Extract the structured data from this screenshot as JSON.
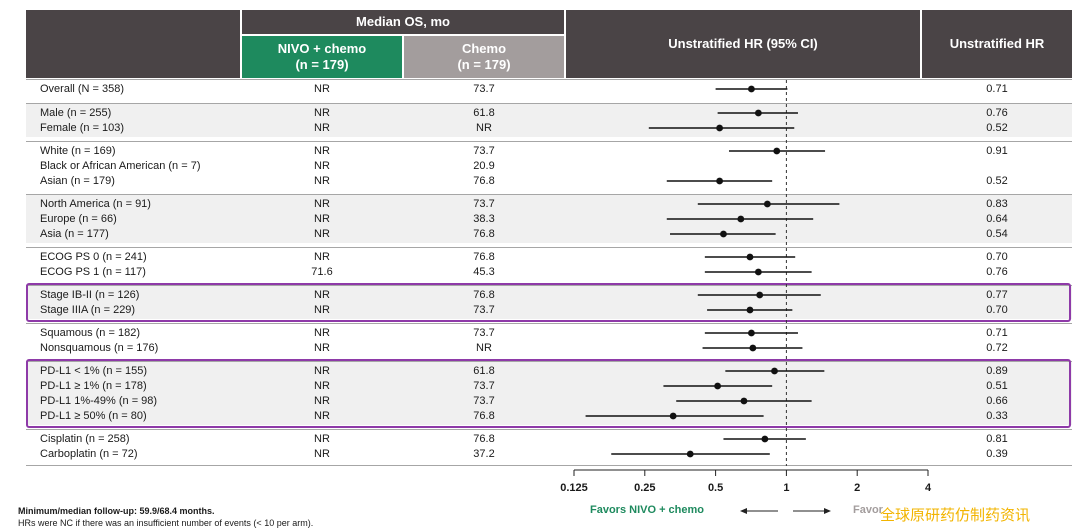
{
  "header": {
    "median_os": "Median OS, mo",
    "nivo": "NIVO + chemo",
    "nivo_n": "(n = 179)",
    "chemo": "Chemo",
    "chemo_n": "(n = 179)",
    "hr_ci": "Unstratified HR (95% CI)",
    "hr": "Unstratified HR"
  },
  "colors": {
    "header_dark": "#4a4446",
    "nivo": "#1e8a5e",
    "chemo": "#a39d9d",
    "highlight": "#8e3aa8",
    "watermark": "#f2b400"
  },
  "rows": [
    {
      "label": "Overall (N = 358)",
      "nivo": "NR",
      "chemo": "73.7",
      "hr_text": "0.71",
      "hr": 0.71,
      "lo": 0.5,
      "hi": 1.01
    },
    {
      "label": "Male (n = 255)",
      "nivo": "NR",
      "chemo": "61.8",
      "hr_text": "0.76",
      "hr": 0.76,
      "lo": 0.51,
      "hi": 1.12
    },
    {
      "label": "Female (n = 103)",
      "nivo": "NR",
      "chemo": "NR",
      "hr_text": "0.52",
      "hr": 0.52,
      "lo": 0.26,
      "hi": 1.08
    },
    {
      "label": "White (n = 169)",
      "nivo": "NR",
      "chemo": "73.7",
      "hr_text": "0.91",
      "hr": 0.91,
      "lo": 0.57,
      "hi": 1.46
    },
    {
      "label": "Black or African American (n = 7)",
      "nivo": "NR",
      "chemo": "20.9",
      "hr_text": "",
      "hr": null,
      "lo": null,
      "hi": null
    },
    {
      "label": "Asian (n = 179)",
      "nivo": "NR",
      "chemo": "76.8",
      "hr_text": "0.52",
      "hr": 0.52,
      "lo": 0.31,
      "hi": 0.87
    },
    {
      "label": "North America (n = 91)",
      "nivo": "NR",
      "chemo": "73.7",
      "hr_text": "0.83",
      "hr": 0.83,
      "lo": 0.42,
      "hi": 1.68
    },
    {
      "label": "Europe (n = 66)",
      "nivo": "NR",
      "chemo": "38.3",
      "hr_text": "0.64",
      "hr": 0.64,
      "lo": 0.31,
      "hi": 1.3
    },
    {
      "label": "Asia (n = 177)",
      "nivo": "NR",
      "chemo": "76.8",
      "hr_text": "0.54",
      "hr": 0.54,
      "lo": 0.32,
      "hi": 0.9
    },
    {
      "label": "ECOG PS 0 (n = 241)",
      "nivo": "NR",
      "chemo": "76.8",
      "hr_text": "0.70",
      "hr": 0.7,
      "lo": 0.45,
      "hi": 1.09
    },
    {
      "label": "ECOG PS 1 (n = 117)",
      "nivo": "71.6",
      "chemo": "45.3",
      "hr_text": "0.76",
      "hr": 0.76,
      "lo": 0.45,
      "hi": 1.28
    },
    {
      "label": "Stage IB-II (n = 126)",
      "nivo": "NR",
      "chemo": "76.8",
      "hr_text": "0.77",
      "hr": 0.77,
      "lo": 0.42,
      "hi": 1.4
    },
    {
      "label": "Stage IIIA (n = 229)",
      "nivo": "NR",
      "chemo": "73.7",
      "hr_text": "0.70",
      "hr": 0.7,
      "lo": 0.46,
      "hi": 1.06
    },
    {
      "label": "Squamous (n = 182)",
      "nivo": "NR",
      "chemo": "73.7",
      "hr_text": "0.71",
      "hr": 0.71,
      "lo": 0.45,
      "hi": 1.12
    },
    {
      "label": "Nonsquamous (n = 176)",
      "nivo": "NR",
      "chemo": "NR",
      "hr_text": "0.72",
      "hr": 0.72,
      "lo": 0.44,
      "hi": 1.17
    },
    {
      "label": "PD-L1 < 1% (n = 155)",
      "nivo": "NR",
      "chemo": "61.8",
      "hr_text": "0.89",
      "hr": 0.89,
      "lo": 0.55,
      "hi": 1.45
    },
    {
      "label": "PD-L1 ≥ 1% (n = 178)",
      "nivo": "NR",
      "chemo": "73.7",
      "hr_text": "0.51",
      "hr": 0.51,
      "lo": 0.3,
      "hi": 0.87
    },
    {
      "label": "PD-L1 1%-49% (n = 98)",
      "nivo": "NR",
      "chemo": "73.7",
      "hr_text": "0.66",
      "hr": 0.66,
      "lo": 0.34,
      "hi": 1.28
    },
    {
      "label": "PD-L1 ≥ 50% (n = 80)",
      "nivo": "NR",
      "chemo": "76.8",
      "hr_text": "0.33",
      "hr": 0.33,
      "lo": 0.14,
      "hi": 0.8
    },
    {
      "label": "Cisplatin (n = 258)",
      "nivo": "NR",
      "chemo": "76.8",
      "hr_text": "0.81",
      "hr": 0.81,
      "lo": 0.54,
      "hi": 1.21
    },
    {
      "label": "Carboplatin (n = 72)",
      "nivo": "NR",
      "chemo": "37.2",
      "hr_text": "0.39",
      "hr": 0.39,
      "lo": 0.18,
      "hi": 0.85
    }
  ],
  "chart_data": {
    "type": "scatter",
    "title": "Unstratified HR (95% CI)",
    "x_scale": "log2",
    "xlim": [
      0.125,
      4
    ],
    "x_ticks": [
      "0.125",
      "0.25",
      "0.5",
      "1",
      "2",
      "4"
    ],
    "reference_line": 1,
    "favors_left": "Favors NIVO + chemo",
    "favors_right": "Favor",
    "categories": [
      "Overall (N = 358)",
      "Male (n = 255)",
      "Female (n = 103)",
      "White (n = 169)",
      "Black or African American (n = 7)",
      "Asian (n = 179)",
      "North America (n = 91)",
      "Europe (n = 66)",
      "Asia (n = 177)",
      "ECOG PS 0 (n = 241)",
      "ECOG PS 1 (n = 117)",
      "Stage IB-II (n = 126)",
      "Stage IIIA (n = 229)",
      "Squamous (n = 182)",
      "Nonsquamous (n = 176)",
      "PD-L1 < 1% (n = 155)",
      "PD-L1 ≥ 1% (n = 178)",
      "PD-L1 1%-49% (n = 98)",
      "PD-L1 ≥ 50% (n = 80)",
      "Cisplatin (n = 258)",
      "Carboplatin (n = 72)"
    ],
    "hr": [
      0.71,
      0.76,
      0.52,
      0.91,
      null,
      0.52,
      0.83,
      0.64,
      0.54,
      0.7,
      0.76,
      0.77,
      0.7,
      0.71,
      0.72,
      0.89,
      0.51,
      0.66,
      0.33,
      0.81,
      0.39
    ],
    "ci_low": [
      0.5,
      0.51,
      0.26,
      0.57,
      null,
      0.31,
      0.42,
      0.31,
      0.32,
      0.45,
      0.45,
      0.42,
      0.46,
      0.45,
      0.44,
      0.55,
      0.3,
      0.34,
      0.14,
      0.54,
      0.18
    ],
    "ci_high": [
      1.01,
      1.12,
      1.08,
      1.46,
      null,
      0.87,
      1.68,
      1.3,
      0.9,
      1.09,
      1.28,
      1.4,
      1.06,
      1.12,
      1.17,
      1.45,
      0.87,
      1.28,
      0.8,
      1.21,
      0.85
    ]
  },
  "footnotes": {
    "line1": "Minimum/median follow-up: 59.9/68.4 months.",
    "line2": "HRs were NC if there was an insufficient number of events (< 10 per arm)."
  },
  "watermark": "全球原研药仿制药资讯"
}
